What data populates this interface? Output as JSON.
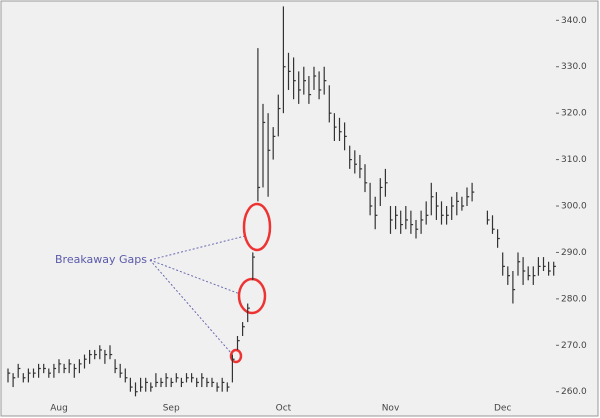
{
  "chart_data": {
    "type": "hlc",
    "annotation": "Breakaway Gaps",
    "categories": [
      null,
      null,
      null,
      null,
      null,
      null,
      null,
      null,
      null,
      null,
      "Aug",
      null,
      null,
      null,
      null,
      null,
      null,
      null,
      null,
      null,
      null,
      null,
      null,
      null,
      null,
      null,
      null,
      null,
      null,
      null,
      null,
      null,
      "Sep",
      null,
      null,
      null,
      null,
      null,
      null,
      null,
      null,
      null,
      null,
      null,
      null,
      null,
      null,
      null,
      null,
      null,
      null,
      null,
      null,
      null,
      "Oct",
      null,
      null,
      null,
      null,
      null,
      null,
      null,
      null,
      null,
      null,
      null,
      null,
      null,
      null,
      null,
      null,
      null,
      null,
      null,
      null,
      "Nov",
      null,
      null,
      null,
      null,
      null,
      null,
      null,
      null,
      null,
      null,
      null,
      null,
      null,
      null,
      null,
      null,
      null,
      null,
      null,
      null,
      null,
      "Dec",
      null,
      null,
      null,
      null,
      null,
      null,
      null,
      null,
      null,
      null
    ],
    "high": [
      265,
      264,
      266,
      264,
      265,
      265,
      266,
      266,
      265,
      266,
      267,
      266,
      267,
      266,
      267,
      268,
      269,
      269,
      270,
      269,
      270,
      267,
      266,
      265,
      263,
      262,
      263,
      263,
      262,
      264,
      263,
      264,
      263,
      264,
      263,
      264,
      264,
      263,
      264,
      263,
      263,
      262,
      263,
      262,
      268,
      272,
      275,
      279,
      290,
      334,
      322,
      320,
      317,
      324,
      343,
      333,
      332,
      329,
      330,
      328,
      330,
      329,
      330,
      326,
      320,
      319,
      318,
      313,
      312,
      311,
      309,
      305,
      302,
      306,
      308,
      300,
      300,
      299,
      300,
      299,
      297,
      299,
      301,
      305,
      303,
      301,
      300,
      302,
      303,
      302,
      304,
      305,
      null,
      null,
      299,
      298,
      295,
      290,
      287,
      286,
      290,
      289,
      287,
      287,
      289,
      289,
      288,
      288
    ],
    "low": [
      262,
      261,
      263,
      262,
      262,
      263,
      263,
      264,
      263,
      263,
      264,
      264,
      264,
      263,
      264,
      265,
      266,
      267,
      267,
      266,
      267,
      264,
      263,
      262,
      260,
      259,
      260,
      260,
      260,
      261,
      261,
      261,
      261,
      262,
      261,
      262,
      262,
      261,
      261,
      261,
      261,
      260,
      260,
      260,
      262,
      269,
      272,
      275,
      284,
      301,
      304,
      302,
      310,
      315,
      320,
      325,
      323,
      322,
      324,
      322,
      325,
      323,
      324,
      318,
      314,
      314,
      312,
      308,
      307,
      306,
      303,
      298,
      295,
      300,
      302,
      294,
      295,
      294,
      295,
      294,
      293,
      294,
      296,
      298,
      297,
      296,
      296,
      297,
      298,
      299,
      300,
      301,
      null,
      null,
      296,
      294,
      291,
      285,
      283,
      279,
      285,
      283,
      284,
      283,
      285,
      286,
      285,
      285
    ],
    "close": [
      264,
      263,
      265,
      263,
      264,
      264,
      265,
      265,
      264,
      265,
      266,
      265,
      266,
      265,
      266,
      267,
      268,
      268,
      269,
      268,
      268,
      265,
      264,
      263,
      261,
      260,
      261,
      262,
      261,
      262,
      262,
      263,
      262,
      263,
      262,
      263,
      263,
      262,
      263,
      262,
      262,
      261,
      262,
      261,
      267,
      271,
      274,
      278,
      289,
      304,
      318,
      312,
      315,
      321,
      330,
      329,
      327,
      325,
      327,
      324,
      328,
      325,
      327,
      320,
      317,
      316,
      315,
      310,
      309,
      308,
      305,
      300,
      298,
      304,
      305,
      297,
      298,
      296,
      297,
      296,
      295,
      297,
      298,
      302,
      300,
      298,
      298,
      300,
      301,
      300,
      302,
      303,
      null,
      null,
      297,
      295,
      293,
      287,
      285,
      282,
      288,
      286,
      285,
      285,
      287,
      287,
      286,
      287
    ],
    "color": "#333333",
    "ylim": [
      258,
      343.3
    ],
    "yticks": [
      {
        "value": 260,
        "label": "260.0"
      },
      {
        "value": 270,
        "label": "270.0"
      },
      {
        "value": 280,
        "label": "280.0"
      },
      {
        "value": 290,
        "label": "290.0"
      },
      {
        "value": 300,
        "label": "300.0"
      },
      {
        "value": 310,
        "label": "310.0"
      },
      {
        "value": 320,
        "label": "320.0"
      },
      {
        "value": 330,
        "label": "330.0"
      },
      {
        "value": 340,
        "label": "340.0"
      }
    ]
  }
}
